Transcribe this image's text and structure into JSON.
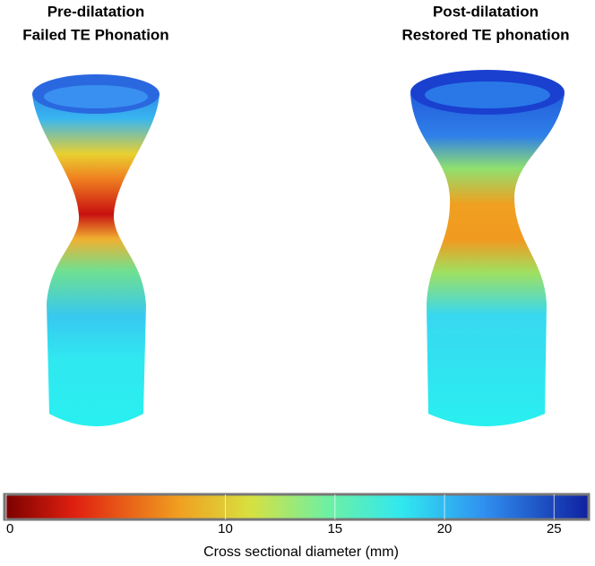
{
  "panels": [
    {
      "title": [
        "Pre-dilatation",
        "Failed TE Phonation"
      ]
    },
    {
      "title": [
        "Post-dilatation",
        "Restored TE phonation"
      ]
    }
  ],
  "colorbar": {
    "label": "Cross sectional diameter (mm)",
    "range": [
      0,
      26.5
    ],
    "ticks": [
      0,
      10,
      15,
      20,
      25
    ]
  }
}
